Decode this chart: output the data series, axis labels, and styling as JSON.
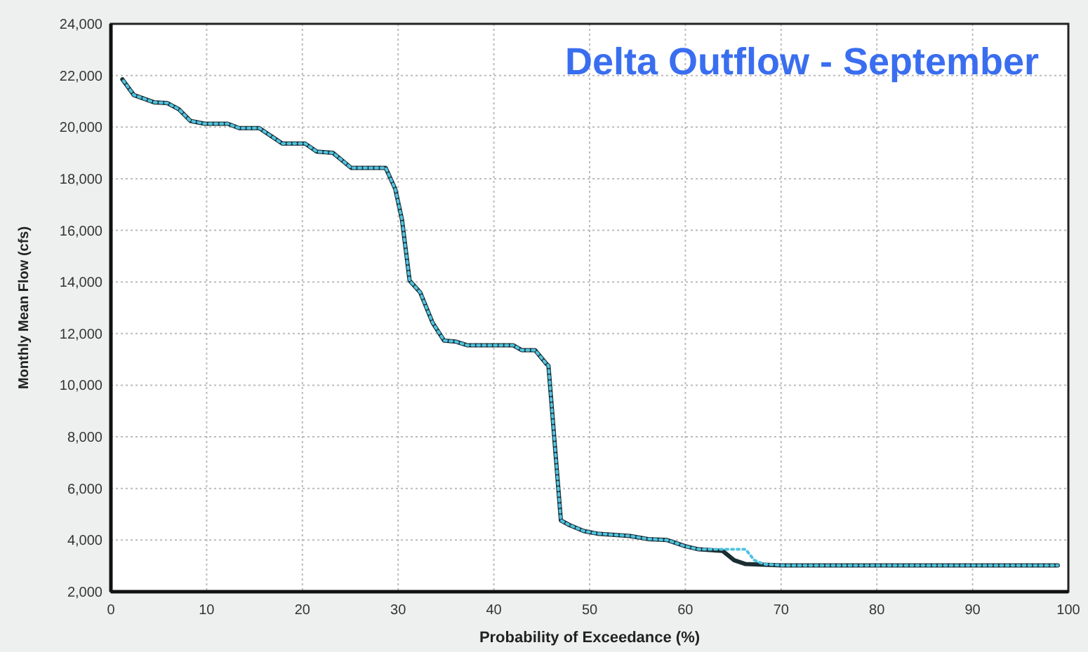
{
  "chart_data": {
    "type": "line",
    "title": "Delta Outflow - September",
    "xlabel": "Probability of Exceedance (%)",
    "ylabel": "Monthly Mean Flow (cfs)",
    "xlim": [
      0,
      100
    ],
    "xticks": [
      0,
      10,
      20,
      30,
      40,
      50,
      60,
      70,
      80,
      90,
      100
    ],
    "ylim": [
      2000,
      24000
    ],
    "yticks": [
      {
        "value": 2000,
        "label": "2,000"
      },
      {
        "value": 4000,
        "label": "4,000"
      },
      {
        "value": 6000,
        "label": "6,000"
      },
      {
        "value": 8000,
        "label": "8,000"
      },
      {
        "value": 10000,
        "label": "10,000"
      },
      {
        "value": 12000,
        "label": "12,000"
      },
      {
        "value": 14000,
        "label": "14,000"
      },
      {
        "value": 16000,
        "label": "16,000"
      },
      {
        "value": 18000,
        "label": "18,000"
      },
      {
        "value": 20000,
        "label": "20,000"
      },
      {
        "value": 22000,
        "label": "22,000"
      },
      {
        "value": 24000,
        "label": "24,000"
      }
    ],
    "grid": true,
    "series": [
      {
        "color": "#4fc3e0",
        "line_style": "dotted",
        "x": [
          1.2,
          2.4,
          4.5,
          5.9,
          7.1,
          8.3,
          9.8,
          12.2,
          13.4,
          15.5,
          17.9,
          20.3,
          21.5,
          23.2,
          25.1,
          28.7,
          29.7,
          30.4,
          31.2,
          32.3,
          33.6,
          34.8,
          36.0,
          37.2,
          42.0,
          42.9,
          44.3,
          45.5,
          45.7,
          47.0,
          47.9,
          49.4,
          50.8,
          54.2,
          56.1,
          58.1,
          60.0,
          61.4,
          63.9,
          66.3,
          67.2,
          68.2,
          70.1,
          98.9
        ],
        "values": [
          21850,
          21240,
          20960,
          20930,
          20690,
          20240,
          20130,
          20130,
          19960,
          19960,
          19360,
          19360,
          19050,
          19000,
          18420,
          18420,
          17600,
          16420,
          14050,
          13600,
          12420,
          11730,
          11690,
          11550,
          11550,
          11360,
          11360,
          10820,
          10760,
          4760,
          4580,
          4350,
          4250,
          4160,
          4040,
          4000,
          3760,
          3640,
          3640,
          3640,
          3220,
          3070,
          3020,
          3020
        ]
      },
      {
        "color": "#1a2e33",
        "line_style": "solid",
        "x": [
          1.2,
          2.4,
          4.5,
          5.9,
          7.1,
          8.3,
          9.8,
          12.2,
          13.4,
          15.5,
          17.9,
          20.3,
          21.5,
          23.2,
          25.1,
          28.7,
          29.7,
          30.4,
          31.2,
          32.3,
          33.6,
          34.8,
          36.0,
          37.2,
          42.0,
          42.9,
          44.3,
          45.5,
          45.7,
          47.0,
          47.9,
          49.4,
          50.8,
          54.2,
          56.1,
          58.1,
          60.0,
          61.4,
          63.9,
          65.1,
          66.3,
          70.1,
          98.9
        ],
        "values": [
          21850,
          21240,
          20960,
          20930,
          20690,
          20240,
          20130,
          20130,
          19960,
          19960,
          19360,
          19360,
          19050,
          19000,
          18420,
          18420,
          17600,
          16420,
          14050,
          13600,
          12420,
          11730,
          11690,
          11550,
          11550,
          11360,
          11360,
          10820,
          10760,
          4760,
          4580,
          4350,
          4250,
          4160,
          4040,
          4000,
          3760,
          3640,
          3580,
          3220,
          3070,
          3020,
          3020
        ]
      }
    ]
  }
}
